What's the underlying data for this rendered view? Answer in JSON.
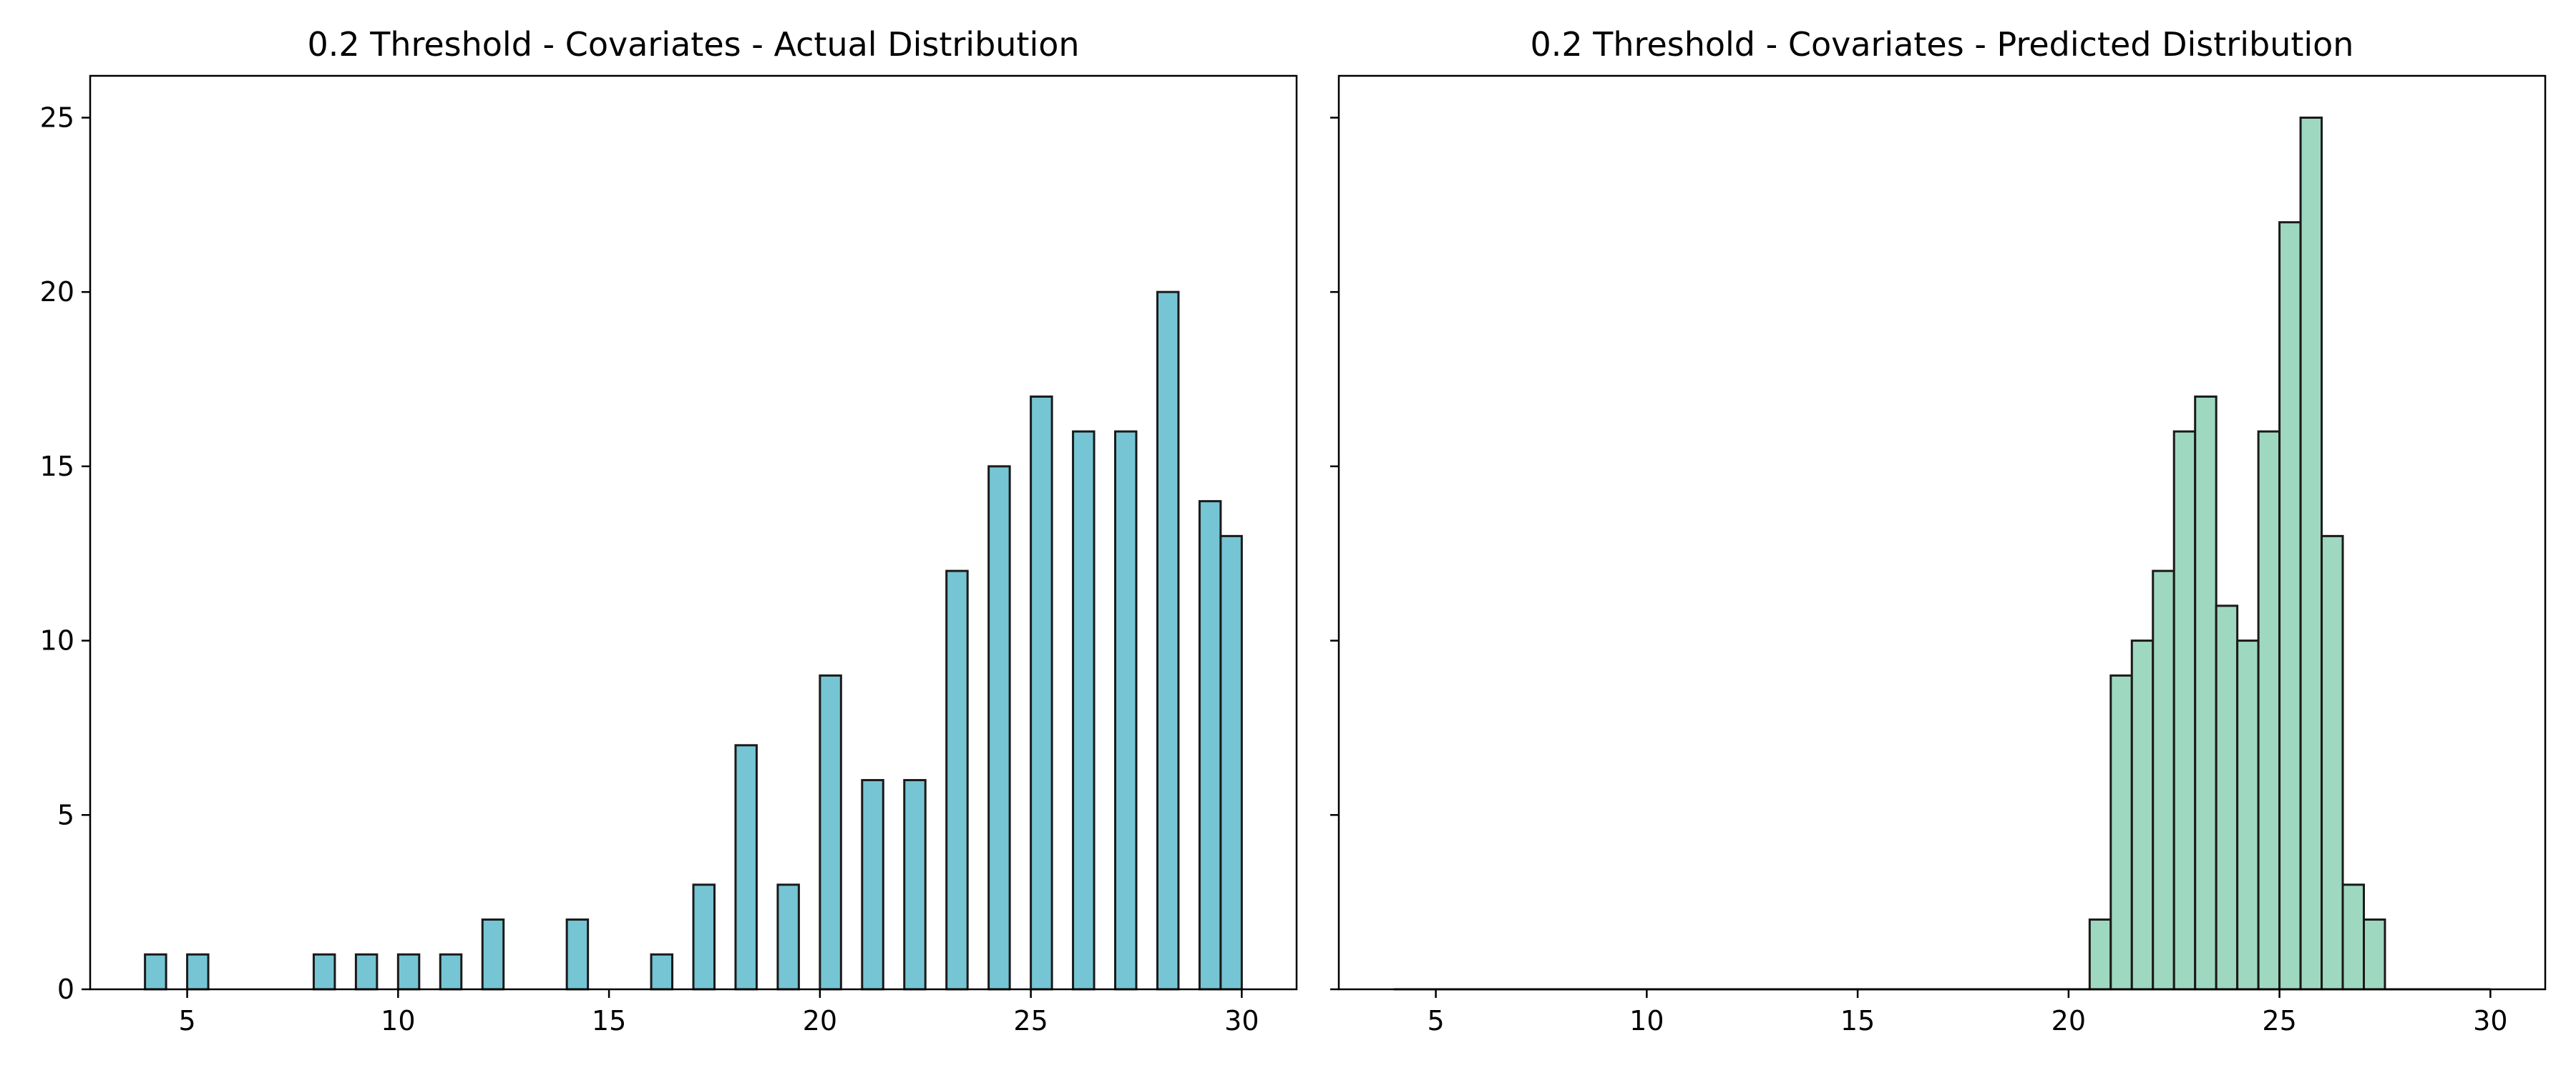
{
  "chart_data": [
    {
      "type": "bar",
      "title": "0.2 Threshold - Covariates - Actual Distribution",
      "xlabel": "",
      "ylabel": "",
      "xlim": [
        2.7,
        31.3
      ],
      "ylim": [
        0,
        26.2
      ],
      "xticks": [
        5,
        10,
        15,
        20,
        25,
        30
      ],
      "yticks": [
        0,
        5,
        10,
        15,
        20,
        25
      ],
      "grid": false,
      "bar_color": "#76c5d4",
      "edge_color": "#1a1a1a",
      "bin_width": 0.5,
      "x": [
        4.25,
        5.25,
        8.25,
        9.25,
        10.25,
        11.25,
        12.25,
        14.25,
        16.25,
        17.25,
        18.25,
        19.25,
        20.25,
        21.25,
        22.25,
        23.25,
        24.25,
        25.25,
        26.25,
        27.25,
        28.25,
        29.25,
        29.75
      ],
      "values": [
        1,
        1,
        1,
        1,
        1,
        1,
        2,
        2,
        1,
        3,
        7,
        3,
        9,
        6,
        6,
        12,
        15,
        17,
        16,
        16,
        20,
        14,
        13
      ]
    },
    {
      "type": "bar",
      "title": "0.2 Threshold - Covariates - Predicted Distribution",
      "xlabel": "",
      "ylabel": "",
      "xlim": [
        2.7,
        31.3
      ],
      "ylim": [
        0,
        26.2
      ],
      "xticks": [
        5,
        10,
        15,
        20,
        25,
        30
      ],
      "yticks": [
        0,
        5,
        10,
        15,
        20,
        25
      ],
      "ytick_labels_shown": false,
      "grid": false,
      "bar_color": "#9fd8c0",
      "edge_color": "#1a1a1a",
      "bin_width": 0.5,
      "x": [
        20.75,
        21.25,
        21.75,
        22.25,
        22.75,
        23.25,
        23.75,
        24.25,
        24.75,
        25.25,
        25.75,
        26.25,
        26.75,
        27.25
      ],
      "values": [
        2,
        9,
        10,
        12,
        16,
        17,
        11,
        10,
        16,
        22,
        25,
        13,
        3,
        2
      ],
      "baseline_range": [
        4,
        30
      ]
    }
  ]
}
